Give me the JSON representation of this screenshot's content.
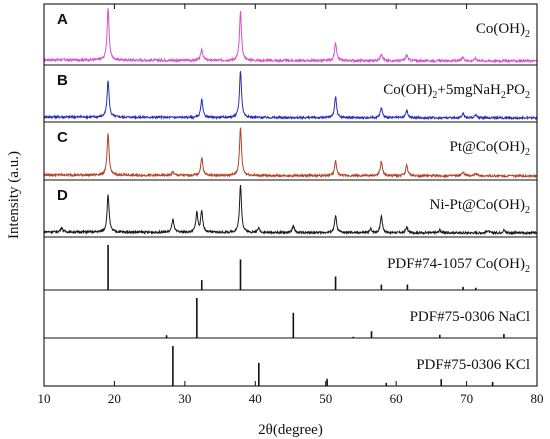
{
  "chart_data": {
    "type": "line",
    "xlabel": "2θ(degree)",
    "ylabel": "Intensity (a.u.)",
    "xlim": [
      10,
      80
    ],
    "xticks": [
      10,
      20,
      30,
      40,
      50,
      60,
      70,
      80
    ],
    "grid": false,
    "panels": [
      {
        "letter": "A",
        "label": "Co(OH)",
        "label_parts": [
          {
            "t": "Co(OH)"
          },
          {
            "t": "2",
            "sub": true
          }
        ],
        "color": "#d94fd4",
        "kind": "pattern",
        "peaks": [
          [
            19.1,
            1.0
          ],
          [
            32.4,
            0.22
          ],
          [
            37.9,
            0.95
          ],
          [
            51.4,
            0.34
          ],
          [
            57.9,
            0.15
          ],
          [
            61.5,
            0.12
          ],
          [
            69.5,
            0.07
          ],
          [
            71.3,
            0.05
          ]
        ]
      },
      {
        "letter": "B",
        "label": "Co(OH)2+5mgNaH2PO2",
        "label_parts": [
          {
            "t": "Co(OH)"
          },
          {
            "t": "2",
            "sub": true
          },
          {
            "t": "+5mgNaH"
          },
          {
            "t": "2",
            "sub": true
          },
          {
            "t": "PO"
          },
          {
            "t": "2",
            "sub": true
          }
        ],
        "color": "#2a2fb6",
        "kind": "pattern",
        "peaks": [
          [
            19.1,
            0.78
          ],
          [
            32.4,
            0.38
          ],
          [
            37.9,
            1.0
          ],
          [
            51.4,
            0.45
          ],
          [
            57.9,
            0.22
          ],
          [
            61.5,
            0.16
          ],
          [
            69.5,
            0.1
          ],
          [
            71.3,
            0.07
          ]
        ]
      },
      {
        "letter": "C",
        "label": "Pt@Co(OH)2",
        "label_parts": [
          {
            "t": "Pt@Co(OH)"
          },
          {
            "t": "2",
            "sub": true
          }
        ],
        "color": "#b04328",
        "kind": "pattern",
        "peaks": [
          [
            19.1,
            0.85
          ],
          [
            28.3,
            0.07
          ],
          [
            32.4,
            0.38
          ],
          [
            37.9,
            1.0
          ],
          [
            51.4,
            0.3
          ],
          [
            57.9,
            0.3
          ],
          [
            61.5,
            0.22
          ],
          [
            69.5,
            0.08
          ],
          [
            71.3,
            0.06
          ]
        ]
      },
      {
        "letter": "D",
        "label": "Ni-Pt@Co(OH)2",
        "label_parts": [
          {
            "t": "Ni-Pt@Co(OH)"
          },
          {
            "t": "2",
            "sub": true
          }
        ],
        "color": "#1a1a1a",
        "kind": "pattern",
        "peaks": [
          [
            12.5,
            0.1
          ],
          [
            19.1,
            0.8
          ],
          [
            28.3,
            0.28
          ],
          [
            31.7,
            0.42
          ],
          [
            32.4,
            0.45
          ],
          [
            37.9,
            1.0
          ],
          [
            40.5,
            0.1
          ],
          [
            45.4,
            0.14
          ],
          [
            51.4,
            0.36
          ],
          [
            56.4,
            0.08
          ],
          [
            57.9,
            0.36
          ],
          [
            61.5,
            0.12
          ],
          [
            66.2,
            0.06
          ],
          [
            73.0,
            0.05
          ],
          [
            75.3,
            0.06
          ]
        ]
      },
      {
        "letter": "",
        "label": "PDF#74-1057  Co(OH)2",
        "label_parts": [
          {
            "t": "PDF#74-1057  Co(OH)"
          },
          {
            "t": "2",
            "sub": true
          }
        ],
        "color": "#111111",
        "kind": "sticks",
        "sticks": [
          [
            19.1,
            1.0
          ],
          [
            32.4,
            0.22
          ],
          [
            37.9,
            0.68
          ],
          [
            51.4,
            0.3
          ],
          [
            57.9,
            0.12
          ],
          [
            61.6,
            0.12
          ],
          [
            69.5,
            0.07
          ],
          [
            71.3,
            0.05
          ]
        ]
      },
      {
        "letter": "",
        "label": "PDF#75-0306  NaCl",
        "label_parts": [
          {
            "t": "PDF#75-0306  NaCl"
          }
        ],
        "color": "#111111",
        "kind": "sticks",
        "sticks": [
          [
            27.4,
            0.07
          ],
          [
            31.7,
            1.0
          ],
          [
            45.4,
            0.63
          ],
          [
            53.9,
            0.03
          ],
          [
            56.5,
            0.17
          ],
          [
            66.2,
            0.08
          ],
          [
            75.3,
            0.1
          ]
        ]
      },
      {
        "letter": "",
        "label": "PDF#75-0306  KCl",
        "label_parts": [
          {
            "t": "PDF#75-0306  KCl"
          }
        ],
        "color": "#111111",
        "kind": "sticks",
        "sticks": [
          [
            28.3,
            1.0
          ],
          [
            40.5,
            0.58
          ],
          [
            50.2,
            0.18
          ],
          [
            58.6,
            0.08
          ],
          [
            66.4,
            0.17
          ],
          [
            73.7,
            0.1
          ]
        ]
      }
    ]
  }
}
